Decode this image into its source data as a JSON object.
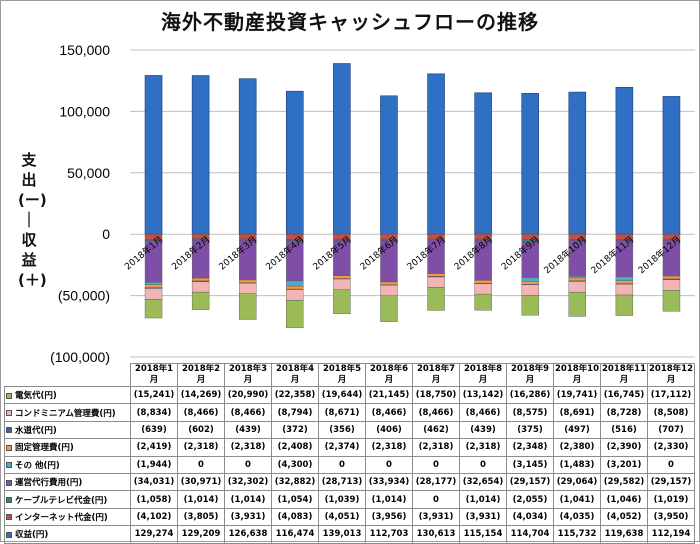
{
  "title": "海外不動産投資キャッシュフローの推移",
  "ylabel_top": "支出(ー)",
  "ylabel_sep": "｜",
  "ylabel_bottom": "収益(＋)",
  "chart_data": {
    "type": "bar",
    "stacked": true,
    "title": "海外不動産投資キャッシュフローの推移",
    "ylabel": "支出(ー) | 収益(＋)",
    "ylim": [
      -100000,
      150000
    ],
    "yticks": [
      150000,
      100000,
      50000,
      0,
      -50000,
      -100000
    ],
    "ytick_labels": [
      "150,000",
      "100,000",
      "50,000",
      "0",
      "(50,000)",
      "(100,000)"
    ],
    "categories": [
      "2018年1月",
      "2018年2月",
      "2018年3月",
      "2018年4月",
      "2018年5月",
      "2018年6月",
      "2018年7月",
      "2018年8月",
      "2018年9月",
      "2018年10月",
      "2018年11月",
      "2018年12月"
    ],
    "table_headers": [
      "2018年1月",
      "2018年2月",
      "2018年3月",
      "2018年4月",
      "2018年5月",
      "2018年6月",
      "2018年7月",
      "2018年8月",
      "2018年9月",
      "2018年10\n月",
      "2018年11\n月",
      "2018年12\n月"
    ],
    "series": [
      {
        "name": "電気代(円)",
        "color": "#9bbb59",
        "values": [
          -15241,
          -14269,
          -20990,
          -22358,
          -19644,
          -21145,
          -18750,
          -13142,
          -16286,
          -19741,
          -16745,
          -17112
        ],
        "labels": [
          "(15,241)",
          "(14,269)",
          "(20,990)",
          "(22,358)",
          "(19,644)",
          "(21,145)",
          "(18,750)",
          "(13,142)",
          "(16,286)",
          "(19,741)",
          "(16,745)",
          "(17,112)"
        ]
      },
      {
        "name": "コンドミニアム管理費(円)",
        "color": "#f2b5b5",
        "values": [
          -8834,
          -8466,
          -8466,
          -8794,
          -8671,
          -8466,
          -8466,
          -8466,
          -8575,
          -8691,
          -8728,
          -8508
        ],
        "labels": [
          "(8,834)",
          "(8,466)",
          "(8,466)",
          "(8,794)",
          "(8,671)",
          "(8,466)",
          "(8,466)",
          "(8,466)",
          "(8,575)",
          "(8,691)",
          "(8,728)",
          "(8,508)"
        ]
      },
      {
        "name": "水道代(円)",
        "color": "#3f5f9a",
        "values": [
          -639,
          -602,
          -439,
          -372,
          -356,
          -406,
          -462,
          -439,
          -375,
          -497,
          -516,
          -707
        ],
        "labels": [
          "(639)",
          "(602)",
          "(439)",
          "(372)",
          "(356)",
          "(406)",
          "(462)",
          "(439)",
          "(375)",
          "(497)",
          "(516)",
          "(707)"
        ]
      },
      {
        "name": "固定管理費(円)",
        "color": "#f79646",
        "values": [
          -2419,
          -2318,
          -2318,
          -2408,
          -2374,
          -2318,
          -2318,
          -2318,
          -2348,
          -2380,
          -2390,
          -2330
        ],
        "labels": [
          "(2,419)",
          "(2,318)",
          "(2,318)",
          "(2,408)",
          "(2,374)",
          "(2,318)",
          "(2,318)",
          "(2,318)",
          "(2,348)",
          "(2,380)",
          "(2,390)",
          "(2,330)"
        ]
      },
      {
        "name": "その 他(円)",
        "color": "#4bacc6",
        "values": [
          -1944,
          0,
          0,
          -4300,
          0,
          0,
          0,
          0,
          -3145,
          -1483,
          -3201,
          0
        ],
        "labels": [
          "(1,944)",
          "0",
          "0",
          "(4,300)",
          "0",
          "0",
          "0",
          "0",
          "(3,145)",
          "(1,483)",
          "(3,201)",
          "0"
        ]
      },
      {
        "name": "運営代行費用(円)",
        "color": "#7f4fa8",
        "values": [
          -34031,
          -30971,
          -32302,
          -32882,
          -28713,
          -33934,
          -28177,
          -32654,
          -29157,
          -29064,
          -29582,
          -29157
        ],
        "labels": [
          "(34,031)",
          "(30,971)",
          "(32,302)",
          "(32,882)",
          "(28,713)",
          "(33,934)",
          "(28,177)",
          "(32,654)",
          "(29,157)",
          "(29,064)",
          "(29,582)",
          "(29,157)"
        ]
      },
      {
        "name": "ケーブルテレビ代金(円)",
        "color": "#2e8b57",
        "values": [
          -1058,
          -1014,
          -1014,
          -1054,
          -1039,
          -1014,
          0,
          -1014,
          -2055,
          -1041,
          -1046,
          -1019
        ],
        "labels": [
          "(1,058)",
          "(1,014)",
          "(1,014)",
          "(1,054)",
          "(1,039)",
          "(1,014)",
          "0",
          "(1,014)",
          "(2,055)",
          "(1,041)",
          "(1,046)",
          "(1,019)"
        ]
      },
      {
        "name": "インターネット代金(円)",
        "color": "#c0504d",
        "values": [
          -4102,
          -3805,
          -3931,
          -4083,
          -4051,
          -3956,
          -3931,
          -3931,
          -4034,
          -4035,
          -4052,
          -3950
        ],
        "labels": [
          "(4,102)",
          "(3,805)",
          "(3,931)",
          "(4,083)",
          "(4,051)",
          "(3,956)",
          "(3,931)",
          "(3,931)",
          "(4,034)",
          "(4,035)",
          "(4,052)",
          "(3,950)"
        ]
      },
      {
        "name": "収益(円)",
        "color": "#2f6fc4",
        "values": [
          129274,
          129209,
          126638,
          116474,
          139013,
          112703,
          130613,
          115154,
          114704,
          115732,
          119638,
          112194
        ],
        "labels": [
          "129,274",
          "129,209",
          "126,638",
          "116,474",
          "139,013",
          "112,703",
          "130,613",
          "115,154",
          "114,704",
          "115,732",
          "119,638",
          "112,194"
        ]
      }
    ]
  }
}
